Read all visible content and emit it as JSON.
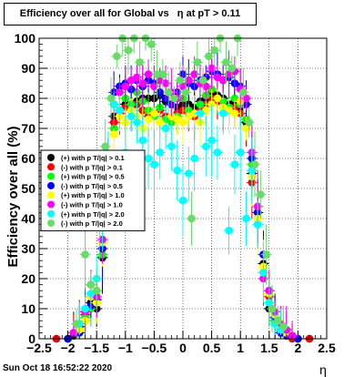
{
  "chart_data": {
    "type": "scatter",
    "title": "Efficiency over all for Global vs   η at pT > 0.11",
    "xlabel": "η",
    "ylabel": "Efficiency over all (%)",
    "xlim": [
      -2.5,
      2.5
    ],
    "ylim": [
      0,
      100
    ],
    "x_ticks": [
      -2.5,
      -2,
      -1.5,
      -1,
      -0.5,
      0,
      0.5,
      1,
      1.5,
      2,
      2.5
    ],
    "y_ticks": [
      0,
      10,
      20,
      30,
      40,
      50,
      60,
      70,
      80,
      90,
      100
    ],
    "grid": true,
    "legend_position": "left-middle",
    "series": [
      {
        "name": "(+) with p T/|q| > 0.1",
        "color": "#000000",
        "x": [
          -2.2,
          -2.0,
          -1.9,
          -1.8,
          -1.7,
          -1.6,
          -1.5,
          -1.4,
          -1.3,
          -1.2,
          -1.1,
          -1.0,
          -0.9,
          -0.8,
          -0.7,
          -0.6,
          -0.5,
          -0.4,
          -0.3,
          -0.2,
          -0.1,
          0.0,
          0.1,
          0.2,
          0.3,
          0.4,
          0.5,
          0.6,
          0.7,
          0.8,
          0.9,
          1.0,
          1.1,
          1.2,
          1.3,
          1.4,
          1.5,
          1.6,
          1.7,
          1.8,
          1.9,
          2.0,
          2.2
        ],
        "y": [
          0,
          0,
          1,
          4,
          9,
          12,
          10,
          27,
          52,
          74,
          76,
          78,
          77,
          79,
          80,
          80,
          80,
          81,
          79,
          78,
          77,
          78,
          78,
          77,
          79,
          80,
          82,
          81,
          80,
          78,
          79,
          77,
          72,
          55,
          42,
          25,
          10,
          6,
          3,
          2,
          1,
          0,
          0
        ]
      },
      {
        "name": "(-) with p T/|q| > 0.1",
        "color": "#ff0000",
        "x": [
          -2.2,
          -2.0,
          -1.9,
          -1.8,
          -1.7,
          -1.6,
          -1.5,
          -1.4,
          -1.3,
          -1.2,
          -1.1,
          -1.0,
          -0.9,
          -0.8,
          -0.7,
          -0.6,
          -0.5,
          -0.4,
          -0.3,
          -0.2,
          -0.1,
          0.0,
          0.1,
          0.2,
          0.3,
          0.4,
          0.5,
          0.6,
          0.7,
          0.8,
          0.9,
          1.0,
          1.1,
          1.2,
          1.3,
          1.4,
          1.5,
          1.6,
          1.7,
          1.8,
          1.9,
          2.0,
          2.2
        ],
        "y": [
          0,
          0,
          2,
          5,
          8,
          14,
          12,
          30,
          55,
          72,
          75,
          77,
          76,
          78,
          76,
          74,
          75,
          76,
          74,
          73,
          75,
          76,
          75,
          74,
          76,
          78,
          80,
          79,
          77,
          76,
          77,
          75,
          70,
          52,
          40,
          22,
          14,
          5,
          2,
          1,
          0,
          0,
          0
        ]
      },
      {
        "name": "(+) with p T/|q| > 0.5",
        "color": "#00ff00",
        "x": [
          -2.0,
          -1.8,
          -1.7,
          -1.6,
          -1.5,
          -1.4,
          -1.3,
          -1.2,
          -1.1,
          -1.0,
          -0.9,
          -0.8,
          -0.7,
          -0.6,
          -0.5,
          -0.4,
          -0.3,
          -0.2,
          -0.1,
          0.0,
          0.1,
          0.2,
          0.3,
          0.4,
          0.5,
          0.6,
          0.7,
          0.8,
          0.9,
          1.0,
          1.1,
          1.2,
          1.3,
          1.4,
          1.5,
          1.6,
          1.7,
          1.8,
          2.0
        ],
        "y": [
          0,
          3,
          7,
          10,
          16,
          28,
          48,
          70,
          76,
          80,
          78,
          82,
          79,
          76,
          74,
          77,
          73,
          72,
          74,
          80,
          76,
          75,
          78,
          81,
          83,
          80,
          79,
          77,
          80,
          78,
          73,
          58,
          38,
          20,
          12,
          6,
          3,
          1,
          0
        ]
      },
      {
        "name": "(-) with p T/|q| > 0.5",
        "color": "#0000ff",
        "x": [
          -2.0,
          -1.8,
          -1.7,
          -1.6,
          -1.5,
          -1.4,
          -1.3,
          -1.2,
          -1.1,
          -1.0,
          -0.9,
          -0.8,
          -0.7,
          -0.6,
          -0.5,
          -0.4,
          -0.3,
          -0.2,
          -0.1,
          0.0,
          0.1,
          0.2,
          0.3,
          0.4,
          0.5,
          0.6,
          0.7,
          0.8,
          0.9,
          1.0,
          1.1,
          1.2,
          1.3,
          1.4,
          1.5,
          1.6,
          1.7,
          1.8,
          2.0
        ],
        "y": [
          0,
          2,
          6,
          11,
          13,
          30,
          54,
          82,
          84,
          85,
          83,
          86,
          84,
          86,
          85,
          82,
          80,
          78,
          82,
          88,
          85,
          84,
          86,
          87,
          89,
          88,
          86,
          87,
          85,
          84,
          78,
          60,
          42,
          28,
          16,
          7,
          2,
          1,
          0
        ]
      },
      {
        "name": "(+) with p T/|q| > 1.0",
        "color": "#ffff00",
        "x": [
          -1.8,
          -1.7,
          -1.6,
          -1.5,
          -1.4,
          -1.3,
          -1.2,
          -1.1,
          -1.0,
          -0.9,
          -0.8,
          -0.7,
          -0.6,
          -0.5,
          -0.4,
          -0.3,
          -0.2,
          -0.1,
          0.0,
          0.1,
          0.2,
          0.3,
          0.4,
          0.5,
          0.6,
          0.7,
          0.8,
          0.9,
          1.0,
          1.1,
          1.2,
          1.3,
          1.4,
          1.5,
          1.6,
          1.7,
          1.8
        ],
        "y": [
          3,
          6,
          14,
          12,
          32,
          50,
          68,
          74,
          72,
          76,
          74,
          70,
          73,
          75,
          72,
          70,
          74,
          73,
          72,
          74,
          75,
          72,
          76,
          78,
          80,
          77,
          76,
          75,
          79,
          70,
          54,
          40,
          24,
          15,
          8,
          4,
          2
        ]
      },
      {
        "name": "(-) with p T/|q| > 1.0",
        "color": "#ff00ff",
        "x": [
          -1.9,
          -1.8,
          -1.7,
          -1.6,
          -1.5,
          -1.4,
          -1.3,
          -1.2,
          -1.1,
          -1.0,
          -0.9,
          -0.8,
          -0.7,
          -0.6,
          -0.5,
          -0.4,
          -0.3,
          -0.2,
          -0.1,
          0.0,
          0.1,
          0.2,
          0.3,
          0.4,
          0.5,
          0.6,
          0.7,
          0.8,
          0.9,
          1.0,
          1.1,
          1.2,
          1.3,
          1.4,
          1.5,
          1.6,
          1.7,
          1.8,
          1.9
        ],
        "y": [
          2,
          5,
          9,
          18,
          14,
          33,
          56,
          78,
          82,
          84,
          86,
          87,
          85,
          88,
          84,
          86,
          85,
          82,
          80,
          84,
          86,
          88,
          85,
          84,
          90,
          87,
          86,
          88,
          89,
          83,
          80,
          62,
          44,
          20,
          16,
          9,
          5,
          3,
          1
        ]
      },
      {
        "name": "(+) with p T/|q| > 2.0",
        "color": "#00ffff",
        "x": [
          -1.8,
          -1.7,
          -1.6,
          -1.5,
          -1.4,
          -1.3,
          -1.2,
          -1.1,
          -1.0,
          -0.9,
          -0.8,
          -0.7,
          -0.6,
          -0.5,
          -0.4,
          -0.3,
          -0.2,
          -0.1,
          0.0,
          0.1,
          0.2,
          0.3,
          0.4,
          0.5,
          0.6,
          0.7,
          0.8,
          0.9,
          1.0,
          1.1,
          1.2,
          1.3,
          1.4,
          1.5,
          1.6,
          1.7
        ],
        "y": [
          5,
          10,
          15,
          20,
          38,
          58,
          78,
          76,
          62,
          74,
          72,
          66,
          60,
          58,
          62,
          70,
          64,
          56,
          46,
          55,
          60,
          75,
          64,
          66,
          62,
          75,
          36,
          58,
          62,
          40,
          56,
          38,
          22,
          12,
          5,
          3
        ]
      },
      {
        "name": "(-) with p T/|q| > 2.0",
        "color": "#66dd66",
        "x": [
          -1.85,
          -1.7,
          -1.6,
          -1.5,
          -1.45,
          -1.35,
          -1.25,
          -1.15,
          -1.05,
          -0.95,
          -0.85,
          -0.75,
          -0.65,
          -0.55,
          -0.45,
          -0.35,
          -0.25,
          -0.15,
          -0.05,
          0.05,
          0.15,
          0.25,
          0.35,
          0.45,
          0.55,
          0.65,
          0.75,
          0.85,
          0.95,
          1.05,
          1.15,
          1.25,
          1.35,
          1.45,
          1.55,
          1.65,
          1.75
        ],
        "y": [
          5,
          28,
          18,
          16,
          38,
          64,
          80,
          94,
          100,
          96,
          100,
          92,
          100,
          98,
          88,
          88,
          82,
          80,
          86,
          82,
          40,
          92,
          86,
          94,
          96,
          100,
          92,
          90,
          100,
          82,
          72,
          58,
          48,
          28,
          10,
          6,
          4
        ]
      }
    ]
  },
  "timestamp": "Sun Oct 18 16:52:22 2020"
}
